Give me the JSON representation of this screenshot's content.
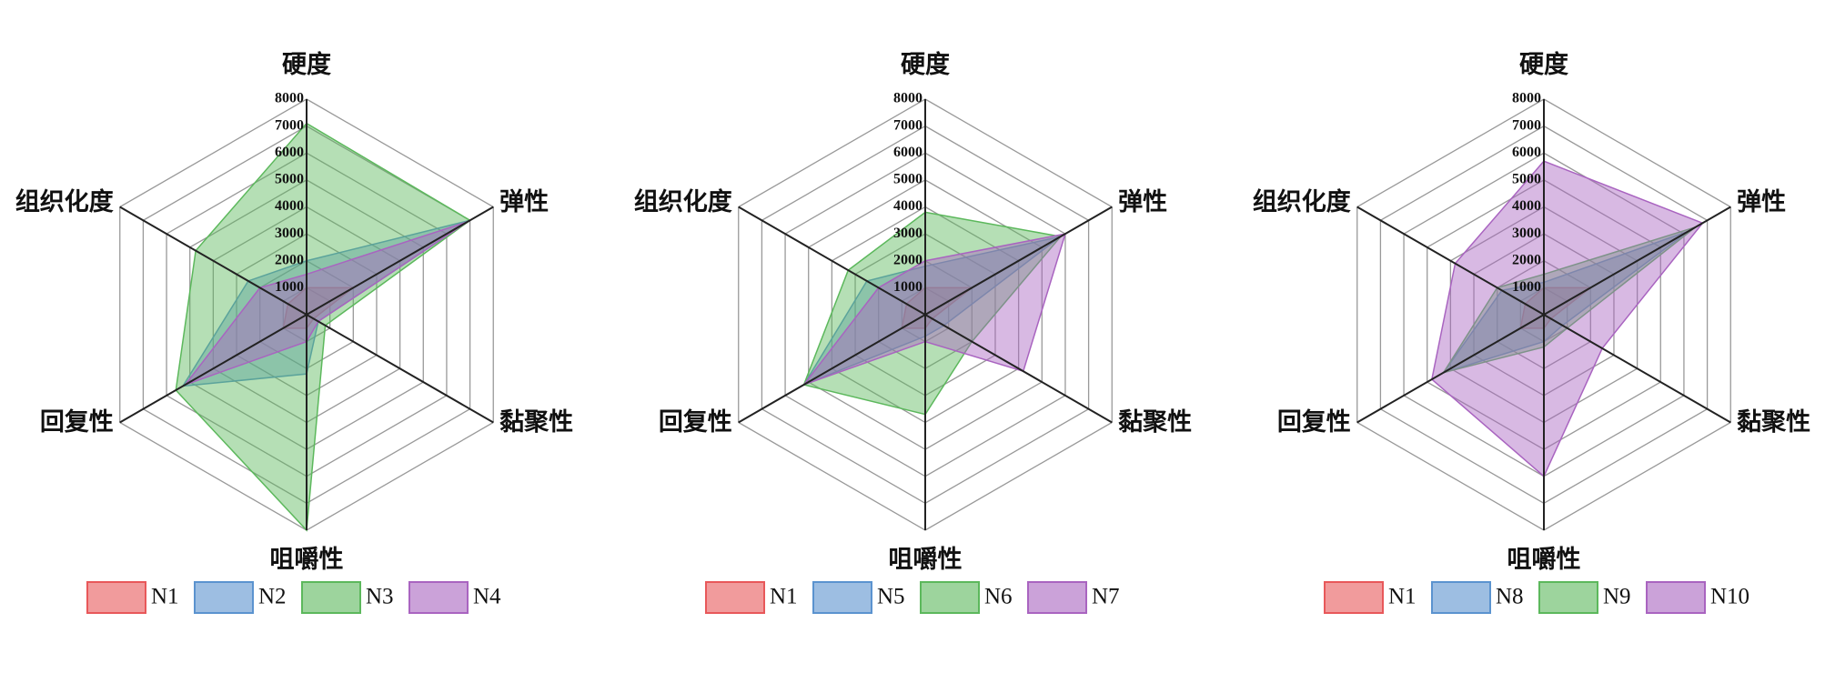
{
  "chart_data": [
    {
      "type": "radar",
      "categories": [
        "硬度",
        "弹性",
        "黏聚性",
        "咀嚼性",
        "回复性",
        "组织化度"
      ],
      "ylim": [
        0,
        8000
      ],
      "yticks": [
        1000,
        2000,
        3000,
        4000,
        5000,
        6000,
        7000,
        8000
      ],
      "series": [
        {
          "name": "N1",
          "color": "#e8585a",
          "values": [
            1000,
            2000,
            300,
            500,
            1000,
            800
          ]
        },
        {
          "name": "N2",
          "color": "#5b93cf",
          "values": [
            2000,
            7000,
            500,
            2200,
            5300,
            2500
          ]
        },
        {
          "name": "N3",
          "color": "#5cb85c",
          "values": [
            7100,
            7000,
            800,
            8000,
            5600,
            4750
          ]
        },
        {
          "name": "N4",
          "color": "#a964c0",
          "values": [
            1500,
            6900,
            500,
            1000,
            5200,
            2000
          ]
        }
      ]
    },
    {
      "type": "radar",
      "categories": [
        "硬度",
        "弹性",
        "黏聚性",
        "咀嚼性",
        "回复性",
        "组织化度"
      ],
      "ylim": [
        0,
        8000
      ],
      "yticks": [
        1000,
        2000,
        3000,
        4000,
        5000,
        6000,
        7000,
        8000
      ],
      "series": [
        {
          "name": "N1",
          "color": "#e8585a",
          "values": [
            1000,
            2000,
            300,
            500,
            1000,
            800
          ]
        },
        {
          "name": "N5",
          "color": "#5b93cf",
          "values": [
            1800,
            5800,
            800,
            800,
            5200,
            2500
          ]
        },
        {
          "name": "N6",
          "color": "#5cb85c",
          "values": [
            3800,
            5800,
            2000,
            3700,
            5200,
            3300
          ]
        },
        {
          "name": "N7",
          "color": "#a964c0",
          "values": [
            2000,
            6000,
            4200,
            1000,
            5200,
            2000
          ]
        }
      ]
    },
    {
      "type": "radar",
      "categories": [
        "硬度",
        "弹性",
        "黏聚性",
        "咀嚼性",
        "回复性",
        "组织化度"
      ],
      "ylim": [
        0,
        8000
      ],
      "yticks": [
        1000,
        2000,
        3000,
        4000,
        5000,
        6000,
        7000,
        8000
      ],
      "series": [
        {
          "name": "N1",
          "color": "#e8585a",
          "values": [
            1000,
            2000,
            300,
            500,
            1000,
            800
          ]
        },
        {
          "name": "N8",
          "color": "#5b93cf",
          "values": [
            1200,
            6200,
            800,
            1000,
            4300,
            1800
          ]
        },
        {
          "name": "N9",
          "color": "#5cb85c",
          "values": [
            1500,
            6500,
            1000,
            1200,
            4300,
            2000
          ]
        },
        {
          "name": "N10",
          "color": "#a964c0",
          "values": [
            5700,
            6800,
            2500,
            6000,
            4800,
            3800
          ]
        }
      ]
    }
  ]
}
